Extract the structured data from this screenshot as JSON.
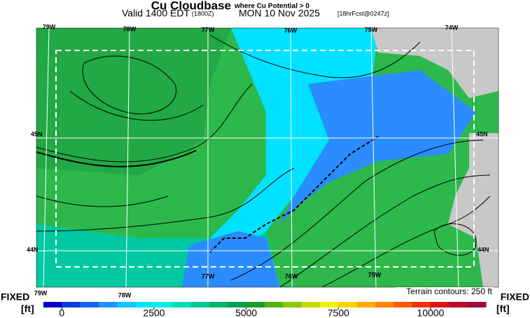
{
  "header": {
    "title": "Cu Cloudbase",
    "title_note": "where Cu Potential > 0",
    "valid": "Valid 1400 EDT",
    "utc": "(1800Z)",
    "date": "MON 10 Nov 2025",
    "forecast": "[18hrFcst@0247z]"
  },
  "map": {
    "lon_labels_top": [
      "79W",
      "78W",
      "77W",
      "76W",
      "75W",
      "74W"
    ],
    "lon_labels_bottom": [
      "79W",
      "78W",
      "77W",
      "76W",
      "75W"
    ],
    "lat_labels_left": [
      "45N",
      "44N"
    ],
    "lat_labels_right": [
      "45N",
      "44N"
    ],
    "terrain_note": "Terrain contours: 250 ft"
  },
  "legend": {
    "label_left": "FIXED",
    "unit_left": "[ft]",
    "label_right": "FIXED",
    "unit_right": "[ft]"
  },
  "colorbar": {
    "type": "colorbar",
    "range": [
      -500,
      11500
    ],
    "ticks": [
      0,
      2500,
      5000,
      7500,
      10000
    ],
    "colors": [
      "#0000c8",
      "#0a3cdc",
      "#1464f0",
      "#1e96ff",
      "#14c8ff",
      "#00e6ff",
      "#00f0dc",
      "#00dcb4",
      "#00c896",
      "#00b46e",
      "#00a050",
      "#14a028",
      "#50b414",
      "#8cc800",
      "#c8dc00",
      "#f0f000",
      "#ffd200",
      "#ffaa00",
      "#ff8200",
      "#ff5a00",
      "#f03200",
      "#dc1414",
      "#be0a28",
      "#a00a3c"
    ]
  }
}
